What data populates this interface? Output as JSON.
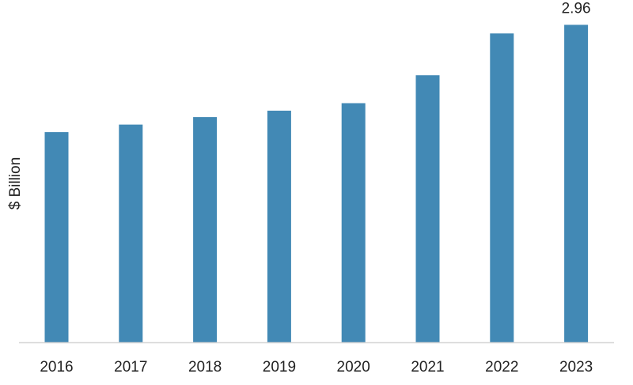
{
  "chart_data": {
    "type": "bar",
    "categories": [
      "2016",
      "2017",
      "2018",
      "2019",
      "2020",
      "2021",
      "2022",
      "2023"
    ],
    "values": [
      1.96,
      2.03,
      2.1,
      2.16,
      2.23,
      2.49,
      2.88,
      2.96
    ],
    "data_labels": [
      "",
      "",
      "",
      "",
      "",
      "",
      "",
      "2.96"
    ],
    "title": "",
    "xlabel": "",
    "ylabel": "$ Billion",
    "ylim": [
      0,
      3.0
    ],
    "grid": false,
    "bar_color": "#4289b5",
    "axis_color": "#d6d6d6"
  }
}
